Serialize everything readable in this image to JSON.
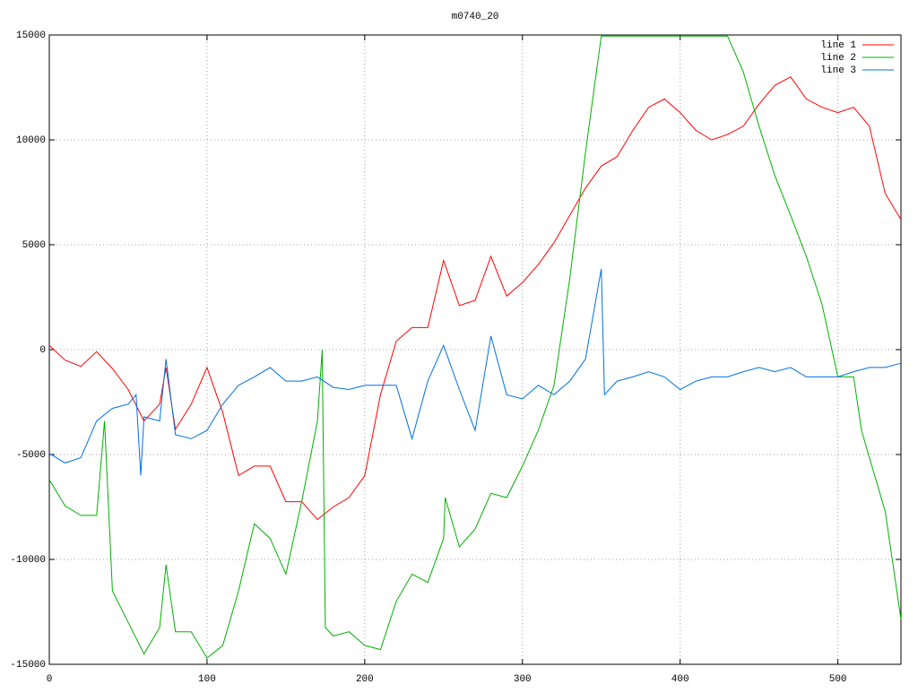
{
  "chart_data": {
    "type": "line",
    "title": "m0740_20",
    "xlim": [
      0,
      540
    ],
    "xticks": [
      0,
      100,
      200,
      300,
      400,
      500
    ],
    "ylim": [
      -15000,
      15000
    ],
    "yticks": [
      -15000,
      -10000,
      -5000,
      0,
      5000,
      10000,
      15000
    ],
    "grid": true,
    "legend": "top-right",
    "series": [
      {
        "name": "line 1",
        "color": "#ff0000",
        "x": [
          0,
          10,
          20,
          30,
          40,
          50,
          60,
          70,
          74,
          80,
          90,
          100,
          110,
          120,
          130,
          140,
          150,
          160,
          170,
          180,
          190,
          200,
          210,
          220,
          230,
          240,
          250,
          260,
          270,
          280,
          290,
          300,
          310,
          320,
          330,
          340,
          350,
          360,
          370,
          380,
          390,
          400,
          410,
          420,
          430,
          440,
          450,
          460,
          470,
          480,
          490,
          500,
          510,
          520,
          530,
          540
        ],
        "values": [
          200,
          -500,
          -800,
          -100,
          -900,
          -1900,
          -3400,
          -2600,
          -850,
          -3800,
          -2600,
          -850,
          -3000,
          -6000,
          -5550,
          -5550,
          -7250,
          -7250,
          -8100,
          -7500,
          -7050,
          -6000,
          -2150,
          400,
          1050,
          1050,
          4250,
          2100,
          2350,
          4450,
          2550,
          3200,
          4050,
          5100,
          6400,
          7700,
          8750,
          9200,
          10450,
          11550,
          11950,
          11300,
          10450,
          10000,
          10250,
          10650,
          11700,
          12600,
          13000,
          11950,
          11550,
          11300,
          11550,
          10650,
          7450,
          6200
        ]
      },
      {
        "name": "line 2",
        "color": "#00b000",
        "x": [
          0,
          10,
          20,
          30,
          35,
          40,
          50,
          60,
          70,
          74,
          80,
          90,
          100,
          110,
          120,
          130,
          140,
          150,
          160,
          170,
          173,
          175,
          180,
          190,
          200,
          210,
          220,
          230,
          240,
          250,
          251,
          260,
          270,
          280,
          290,
          300,
          310,
          320,
          330,
          340,
          350,
          400,
          430,
          440,
          450,
          460,
          470,
          480,
          490,
          500,
          510,
          515,
          520,
          530,
          540
        ],
        "values": [
          -6200,
          -7450,
          -7900,
          -7900,
          -3400,
          -11500,
          -13000,
          -14500,
          -13250,
          -10250,
          -13450,
          -13450,
          -14700,
          -14100,
          -11500,
          -8300,
          -9000,
          -10700,
          -7250,
          -3400,
          0,
          -13250,
          -13650,
          -13450,
          -14100,
          -14300,
          -12000,
          -10700,
          -11100,
          -9000,
          -7050,
          -9400,
          -8550,
          -6850,
          -7050,
          -5550,
          -3850,
          -1700,
          3400,
          9400,
          14950,
          14950,
          14950,
          13250,
          10650,
          8300,
          6400,
          4450,
          2150,
          -1300,
          -1300,
          -3850,
          -5150,
          -7700,
          -12850
        ]
      },
      {
        "name": "line 3",
        "color": "#0070e0",
        "x": [
          0,
          10,
          20,
          30,
          40,
          50,
          55,
          58,
          60,
          70,
          74,
          80,
          90,
          100,
          110,
          120,
          130,
          140,
          150,
          160,
          170,
          180,
          190,
          200,
          210,
          220,
          230,
          240,
          250,
          260,
          270,
          280,
          290,
          300,
          310,
          320,
          330,
          340,
          350,
          352,
          360,
          370,
          380,
          390,
          400,
          410,
          420,
          430,
          440,
          450,
          460,
          470,
          480,
          490,
          500,
          510,
          520,
          530,
          540
        ],
        "values": [
          -4950,
          -5400,
          -5150,
          -3400,
          -2800,
          -2600,
          -2150,
          -6000,
          -3200,
          -3400,
          -450,
          -4050,
          -4250,
          -3850,
          -2600,
          -1700,
          -1300,
          -850,
          -1500,
          -1500,
          -1300,
          -1800,
          -1900,
          -1700,
          -1700,
          -1700,
          -4250,
          -1500,
          200,
          -1900,
          -3850,
          650,
          -2150,
          -2350,
          -1700,
          -2150,
          -1500,
          -450,
          3850,
          -2150,
          -1500,
          -1300,
          -1050,
          -1300,
          -1900,
          -1500,
          -1300,
          -1300,
          -1050,
          -850,
          -1050,
          -850,
          -1300,
          -1300,
          -1300,
          -1050,
          -850,
          -850,
          -650
        ]
      }
    ]
  }
}
